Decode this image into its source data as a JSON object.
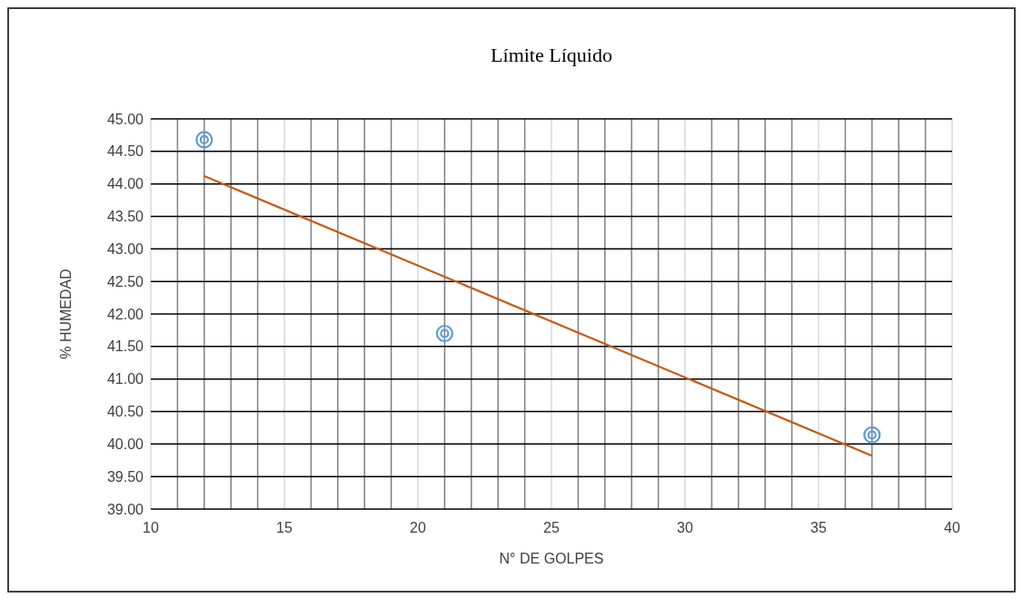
{
  "chart_data": {
    "type": "scatter",
    "title": "Límite Líquido",
    "xlabel": "N° DE GOLPES",
    "ylabel": "% HUMEDAD",
    "x": [
      12,
      21,
      37
    ],
    "series": [
      {
        "color": "#5b9bd5",
        "values": [
          44.68,
          41.7,
          40.14
        ],
        "marker": "circle"
      },
      {
        "type": "line",
        "color": "#c55a11",
        "x": [
          12,
          37
        ],
        "values": [
          44.12,
          39.82
        ],
        "line_style": "solid"
      }
    ],
    "xlim": [
      10,
      40
    ],
    "xticks": [
      10,
      15,
      20,
      25,
      30,
      35,
      40
    ],
    "ylim": [
      39,
      45
    ],
    "yticks": [
      {
        "value": 39,
        "label": "39.00"
      },
      {
        "value": 39.5,
        "label": "39.50"
      },
      {
        "value": 40,
        "label": "40.00"
      },
      {
        "value": 40.5,
        "label": "40.50"
      },
      {
        "value": 41,
        "label": "41.00"
      },
      {
        "value": 41.5,
        "label": "41.50"
      },
      {
        "value": 42,
        "label": "42.00"
      },
      {
        "value": 42.5,
        "label": "42.50"
      },
      {
        "value": 43,
        "label": "43.00"
      },
      {
        "value": 43.5,
        "label": "43.50"
      },
      {
        "value": 44,
        "label": "44.00"
      },
      {
        "value": 44.5,
        "label": "44.50"
      },
      {
        "value": 45,
        "label": "45.00"
      }
    ],
    "grid": true
  }
}
